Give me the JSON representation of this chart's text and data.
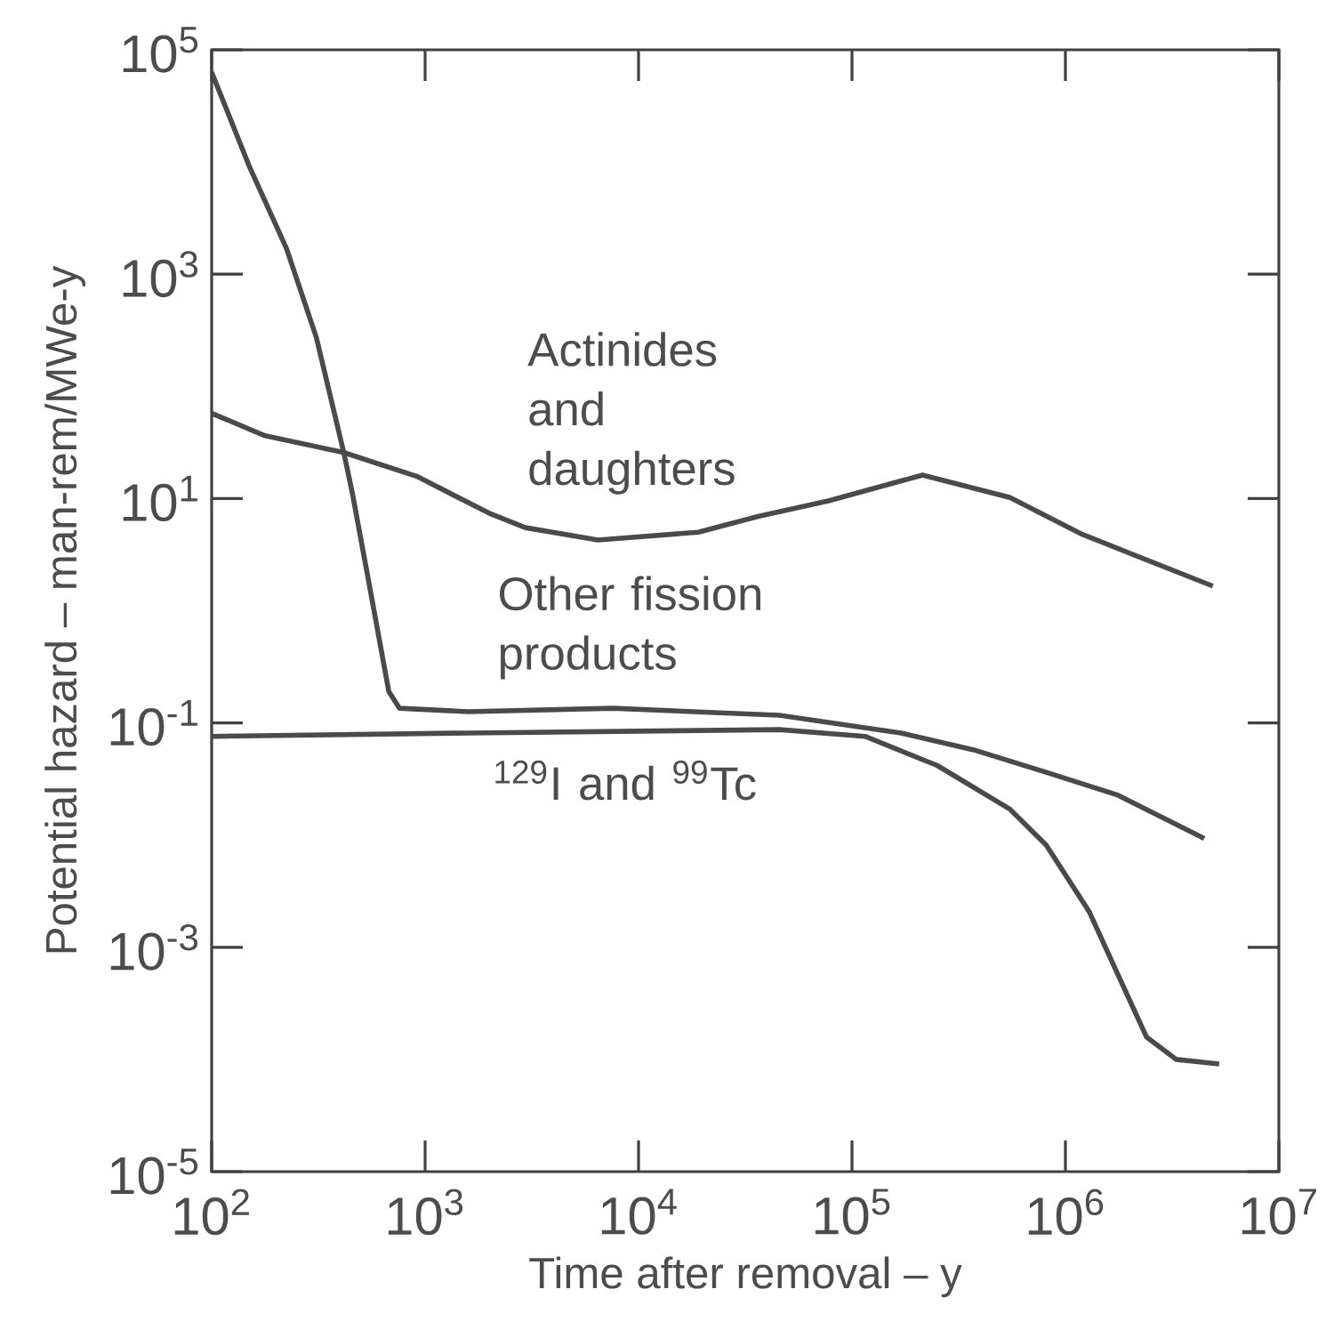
{
  "chart_data": {
    "type": "line",
    "log": "xy",
    "xlabel": "Time after removal – y",
    "ylabel": "Potential hazard – man-rem/MWe-y",
    "xlim": [
      100,
      10000000
    ],
    "ylim": [
      1e-05,
      100000
    ],
    "xticks": [
      {
        "value": 100,
        "label": "10$^{2}$"
      },
      {
        "value": 1000,
        "label": "10$^{3}$"
      },
      {
        "value": 10000,
        "label": "10$^{4}$"
      },
      {
        "value": 100000,
        "label": "10$^{5}$"
      },
      {
        "value": 1000000,
        "label": "10$^{6}$"
      },
      {
        "value": 10000000,
        "label": "10$^{7}$"
      }
    ],
    "yticks": [
      {
        "value": 1e-05,
        "label": "10$^{-5}$"
      },
      {
        "value": 0.001,
        "label": "10$^{-3}$"
      },
      {
        "value": 0.1,
        "label": "10$^{-1}$"
      },
      {
        "value": 10,
        "label": "10$^{1}$"
      },
      {
        "value": 1000,
        "label": "10$^{3}$"
      },
      {
        "value": 100000,
        "label": "10$^{5}$"
      }
    ],
    "series": [
      {
        "name": "Actinides and daughters",
        "color": "#4a4a4a",
        "x": [
          100,
          178,
          417,
          912,
          1995,
          2951,
          6457,
          19050,
          36300,
          77600,
          214000,
          550000,
          1200000,
          4900000
        ],
        "values": [
          57.5,
          36.3,
          25.7,
          15.8,
          7.41,
          5.5,
          4.27,
          5.01,
          6.92,
          9.55,
          16.2,
          10.2,
          4.79,
          1.66
        ]
      },
      {
        "name": "Other fission products",
        "color": "#4a4a4a",
        "x": [
          100,
          151,
          224,
          309,
          417,
          457,
          537,
          676,
          759,
          1585,
          7590,
          45700,
          170000,
          372000,
          813000,
          1740000,
          4470000
        ],
        "values": [
          63100,
          8910,
          1700,
          275,
          25.1,
          11.0,
          2.09,
          0.191,
          0.135,
          0.126,
          0.135,
          0.117,
          0.0813,
          0.0575,
          0.0363,
          0.0229,
          0.00933
        ]
      },
      {
        "name": "$^{129}$I and $^{99}$Tc",
        "color": "#4a4a4a",
        "x": [
          100,
          1585,
          45700,
          115000,
          251000,
          550000,
          813000,
          1290000,
          2400000,
          3310000,
          5250000
        ],
        "values": [
          0.0759,
          0.0813,
          0.0871,
          0.0759,
          0.0417,
          0.017,
          0.00813,
          0.00209,
          0.000158,
          0.0001,
          9.12e-05
        ]
      }
    ]
  }
}
